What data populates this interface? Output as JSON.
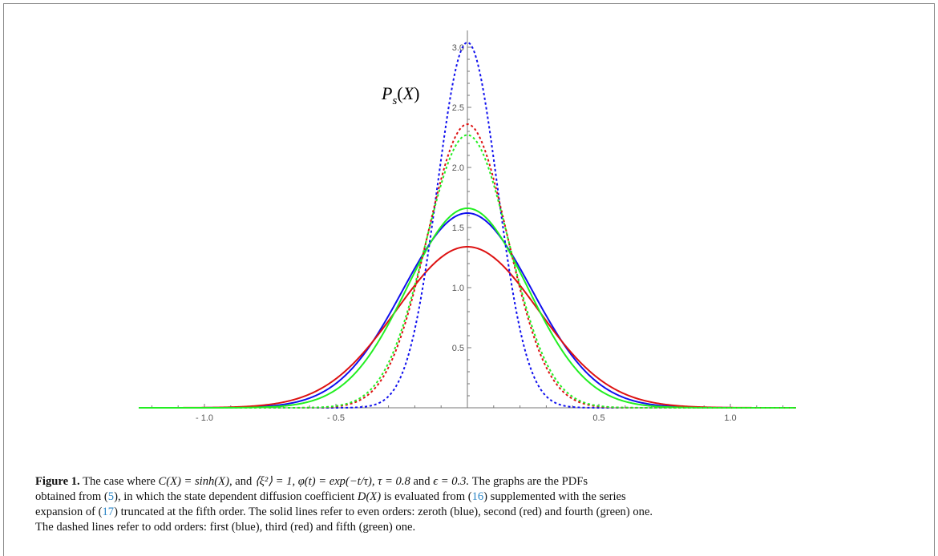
{
  "caption": {
    "label": "Figure 1.",
    "line1_a": "The case where",
    "line1_eq1": "C(X) = sinh(X),",
    "line1_b": "and",
    "line1_eq2": "⟨ξ²⟩ = 1, φ(t) = exp(−t/τ), τ = 0.8",
    "line1_c": "and",
    "line1_eq3": "ϵ = 0.3.",
    "line1_d": "The graphs are the PDFs",
    "line2_a": "obtained from (",
    "ref1": "5",
    "line2_b": "), in which the state dependent diffusion coefficient",
    "line2_eq": "D(X)",
    "line2_c": "is evaluated from (",
    "ref2": "16",
    "line2_d": ") supplemented with the series",
    "line3_a": "expansion of (",
    "ref3": "17",
    "line3_b": ") truncated at the fifth order. The solid lines refer to even orders: zeroth (blue), second (red) and fourth (green) one.",
    "line4": "The dashed lines refer to odd orders: first (blue), third (red) and fifth (green) one."
  },
  "chart_data": {
    "type": "line",
    "ylabel": "P_s(X)",
    "xlim": [
      -1.25,
      1.25
    ],
    "ylim": [
      0,
      3.1
    ],
    "x_ticks": [
      -1.0,
      -0.5,
      0.5,
      1.0
    ],
    "x_tick_labels": [
      "- 1.0",
      "- 0.5",
      "0.5",
      "1.0"
    ],
    "y_ticks": [
      0.5,
      1.0,
      1.5,
      2.0,
      2.5,
      3.0
    ],
    "y_tick_labels": [
      "0.5",
      "1.0",
      "1.5",
      "2.0",
      "2.5",
      "3.0"
    ],
    "grid": false,
    "series": [
      {
        "style": "solid",
        "color": "#1010ee",
        "peak": 1.62,
        "sigma": 0.245
      },
      {
        "style": "solid",
        "color": "#dd1111",
        "peak": 1.34,
        "sigma": 0.27
      },
      {
        "style": "solid",
        "color": "#22ee22",
        "peak": 1.66,
        "sigma": 0.228
      },
      {
        "style": "dashed",
        "color": "#1010ee",
        "peak": 3.04,
        "sigma": 0.114
      },
      {
        "style": "dashed",
        "color": "#dd1111",
        "peak": 2.36,
        "sigma": 0.152
      },
      {
        "style": "dashed",
        "color": "#22ee22",
        "peak": 2.27,
        "sigma": 0.158
      }
    ]
  }
}
